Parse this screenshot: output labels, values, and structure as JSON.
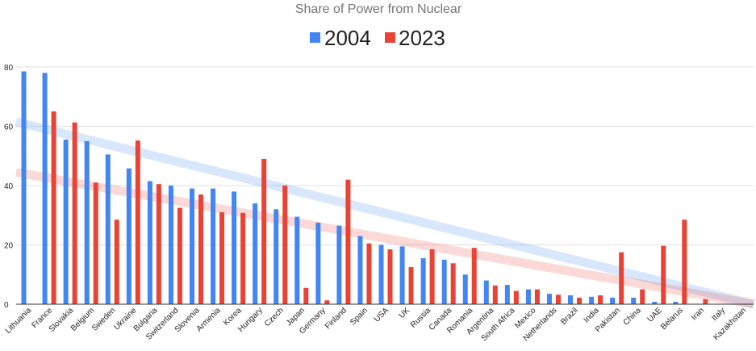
{
  "chart_data": {
    "type": "bar",
    "title": "Share of Power from Nuclear",
    "xlabel": "",
    "ylabel": "",
    "ylim": [
      0,
      80
    ],
    "yticks": [
      0,
      20,
      40,
      60,
      80
    ],
    "grid": true,
    "legend_position": "top",
    "categories": [
      "Lithuania",
      "France",
      "Slovakia",
      "Belgium",
      "Sweden",
      "Ukraine",
      "Bulgaria",
      "Switzerland",
      "Slovenia",
      "Armenia",
      "Korea",
      "Hungary",
      "Czech",
      "Japan",
      "Germany",
      "Finland",
      "Spain",
      "USA",
      "UK",
      "Russia",
      "Canada",
      "Romania",
      "Argentina",
      "South Africa",
      "Mexico",
      "Netherlands",
      "Brazil",
      "India",
      "Pakistan",
      "China",
      "UAE",
      "Belarus",
      "Iran",
      "Italy",
      "Kazakhstan"
    ],
    "series": [
      {
        "name": "2004",
        "color": "#4285f4",
        "values": [
          78.5,
          78,
          55.5,
          55,
          50.5,
          45.8,
          41.5,
          40,
          39,
          39,
          38,
          34,
          32,
          29.5,
          27.5,
          26.5,
          23,
          20,
          19.5,
          15.5,
          15,
          10,
          8,
          6.5,
          5,
          3.5,
          3,
          2.5,
          2.2,
          2.2,
          0.8,
          0.8,
          0,
          0,
          0
        ]
      },
      {
        "name": "2023",
        "color": "#ea4335",
        "values": [
          0,
          65,
          61.3,
          41,
          28.5,
          55.2,
          40.5,
          32.5,
          37,
          31,
          30.8,
          49,
          40,
          5.5,
          1.3,
          42,
          20.5,
          18.5,
          12.5,
          18.5,
          13.8,
          19,
          6.3,
          4.5,
          5,
          3.2,
          2.2,
          3,
          17.5,
          5,
          19.7,
          28.5,
          1.7,
          0,
          0
        ]
      }
    ],
    "trendlines": [
      {
        "series": "2004",
        "color": "#4285f4",
        "start": 61.5,
        "end": 0
      },
      {
        "series": "2023",
        "color": "#ea4335",
        "start": 44.5,
        "end": 0
      }
    ]
  }
}
